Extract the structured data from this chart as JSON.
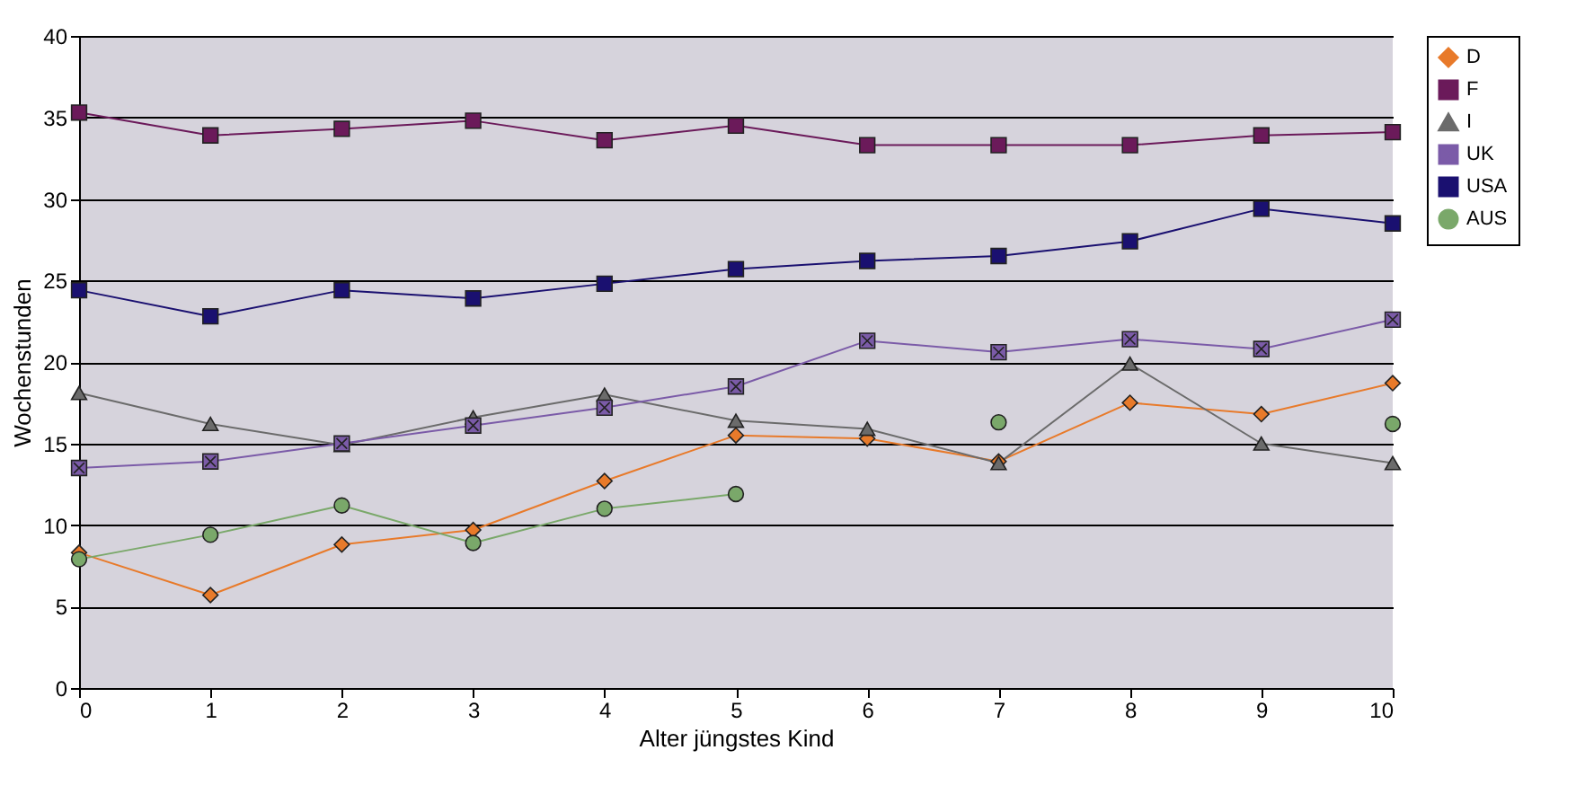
{
  "chart_data": {
    "type": "line",
    "xlabel": "Alter jüngstes Kind",
    "ylabel": "Wochenstunden",
    "x": [
      0,
      1,
      2,
      3,
      4,
      5,
      6,
      7,
      8,
      9,
      10
    ],
    "xlim": [
      0,
      10
    ],
    "xticks": [
      0,
      1,
      2,
      3,
      4,
      5,
      6,
      7,
      8,
      9,
      10
    ],
    "ylim": [
      0,
      40
    ],
    "yticks": [
      0,
      5,
      10,
      15,
      20,
      25,
      30,
      35,
      40
    ],
    "grid": "y",
    "legend": "right",
    "series": [
      {
        "name": "D",
        "color": "#e87a2a",
        "marker": "diamond",
        "values": [
          8.3,
          5.7,
          8.8,
          9.7,
          12.7,
          15.5,
          15.3,
          13.9,
          17.5,
          16.8,
          18.7
        ]
      },
      {
        "name": "F",
        "color": "#6b1a5a",
        "marker": "square",
        "values": [
          35.3,
          33.9,
          34.3,
          34.8,
          33.6,
          34.5,
          33.3,
          33.3,
          33.3,
          33.9,
          34.1
        ]
      },
      {
        "name": "I",
        "color": "#6b6b6b",
        "marker": "triangle",
        "values": [
          18.1,
          16.2,
          14.9,
          16.6,
          18.0,
          16.4,
          15.9,
          13.8,
          19.9,
          15.0,
          13.8
        ]
      },
      {
        "name": "UK",
        "color": "#7b5ba8",
        "marker": "cross",
        "values": [
          13.5,
          13.9,
          15.0,
          16.1,
          17.2,
          18.5,
          21.3,
          20.6,
          21.4,
          20.8,
          22.6
        ]
      },
      {
        "name": "USA",
        "color": "#1a1070",
        "marker": "square",
        "values": [
          24.4,
          22.8,
          24.4,
          23.9,
          24.8,
          25.7,
          26.2,
          26.5,
          27.4,
          29.4,
          28.5
        ]
      },
      {
        "name": "AUS",
        "color": "#7aa86a",
        "marker": "circle",
        "values": [
          7.9,
          9.4,
          11.2,
          8.9,
          11.0,
          11.9,
          null,
          16.3,
          null,
          null,
          16.2
        ]
      }
    ]
  }
}
